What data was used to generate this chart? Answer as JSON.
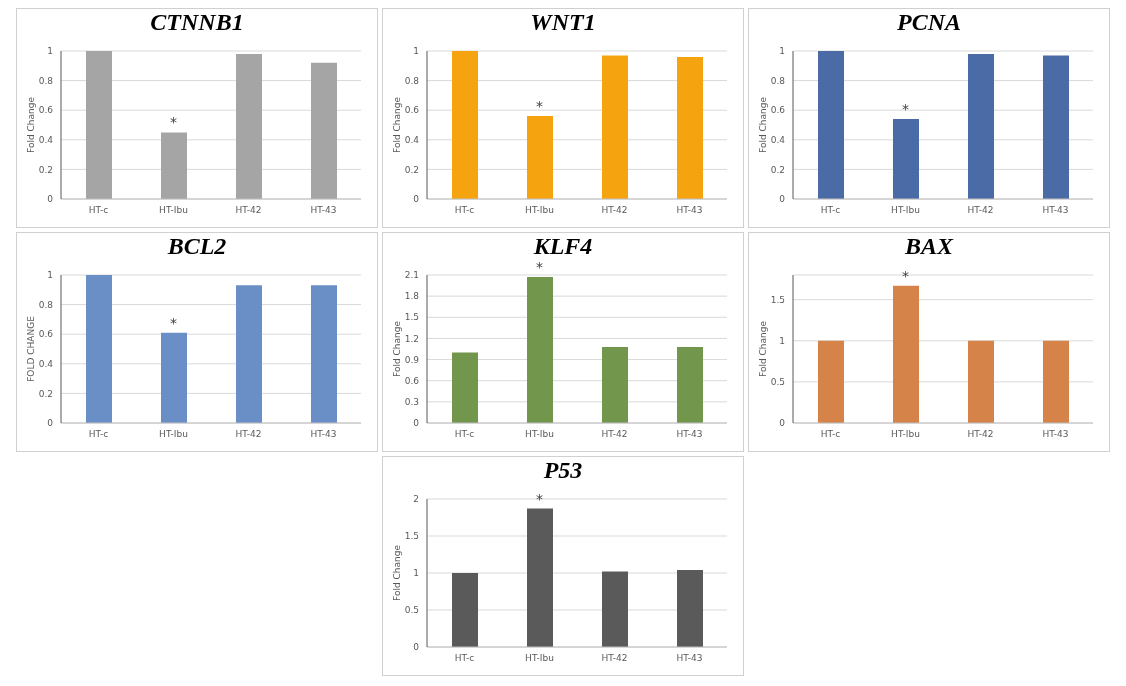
{
  "chart_data": [
    {
      "type": "bar",
      "title": "CTNNB1",
      "ylabel": "Fold Change",
      "categories": [
        "HT-c",
        "HT-Ibu",
        "HT-42",
        "HT-43"
      ],
      "values": [
        1,
        0.45,
        0.98,
        0.92
      ],
      "color": "#a5a5a5",
      "ylim": [
        0,
        1
      ],
      "yticks": [
        0,
        0.2,
        0.4,
        0.6,
        0.8,
        1
      ],
      "grid": "y",
      "annotations": [
        {
          "text": "*",
          "x": "HT-Ibu",
          "y": 0.45
        }
      ]
    },
    {
      "type": "bar",
      "title": "WNT1",
      "ylabel": "Fold Change",
      "categories": [
        "HT-c",
        "HT-Ibu",
        "HT-42",
        "HT-43"
      ],
      "values": [
        1,
        0.56,
        0.97,
        0.96
      ],
      "color": "#f5a30f",
      "ylim": [
        0,
        1
      ],
      "yticks": [
        0,
        0.2,
        0.4,
        0.6,
        0.8,
        1
      ],
      "grid": "y",
      "annotations": [
        {
          "text": "*",
          "x": "HT-Ibu",
          "y": 0.56
        }
      ]
    },
    {
      "type": "bar",
      "title": "PCNA",
      "ylabel": "Fold Change",
      "categories": [
        "HT-c",
        "HT-Ibu",
        "HT-42",
        "HT-43"
      ],
      "values": [
        1,
        0.54,
        0.98,
        0.97
      ],
      "color": "#4a6ba5",
      "ylim": [
        0,
        1
      ],
      "yticks": [
        0,
        0.2,
        0.4,
        0.6,
        0.8,
        1
      ],
      "grid": "y",
      "annotations": [
        {
          "text": "*",
          "x": "HT-Ibu",
          "y": 0.54
        }
      ]
    },
    {
      "type": "bar",
      "title": "BCL2",
      "ylabel": "FOLD CHANGE",
      "categories": [
        "HT-c",
        "HT-Ibu",
        "HT-42",
        "HT-43"
      ],
      "values": [
        1,
        0.61,
        0.93,
        0.93
      ],
      "color": "#6a8fc6",
      "ylim": [
        0,
        1
      ],
      "yticks": [
        0,
        0.2,
        0.4,
        0.6,
        0.8,
        1
      ],
      "grid": "y",
      "annotations": [
        {
          "text": "*",
          "x": "HT-Ibu",
          "y": 0.61
        }
      ]
    },
    {
      "type": "bar",
      "title": "KLF4",
      "ylabel": "Fold Change",
      "categories": [
        "HT-c",
        "HT-Ibu",
        "HT-42",
        "HT-43"
      ],
      "values": [
        1,
        2.07,
        1.08,
        1.08
      ],
      "color": "#72964c",
      "ylim": [
        0,
        2.1
      ],
      "yticks": [
        0,
        0.3,
        0.6,
        0.9,
        1.2,
        1.5,
        1.8,
        2.1
      ],
      "grid": "y",
      "annotations": [
        {
          "text": "*",
          "x": "HT-Ibu",
          "y": 2.07
        }
      ]
    },
    {
      "type": "bar",
      "title": "BAX",
      "ylabel": "Fold Change",
      "categories": [
        "HT-c",
        "HT-Ibu",
        "HT-42",
        "HT-43"
      ],
      "values": [
        1,
        1.67,
        1,
        1
      ],
      "color": "#d6834a",
      "ylim": [
        0,
        1.8
      ],
      "yticks": [
        0,
        0.5,
        1,
        1.5
      ],
      "grid": "y",
      "annotations": [
        {
          "text": "*",
          "x": "HT-Ibu",
          "y": 1.67
        }
      ]
    },
    {
      "type": "bar",
      "title": "P53",
      "ylabel": "Fold Change",
      "categories": [
        "HT-c",
        "HT-Ibu",
        "HT-42",
        "HT-43"
      ],
      "values": [
        1,
        1.87,
        1.02,
        1.04
      ],
      "color": "#5a5a5a",
      "ylim": [
        0,
        2
      ],
      "yticks": [
        0,
        0.5,
        1,
        1.5,
        2
      ],
      "grid": "y",
      "annotations": [
        {
          "text": "*",
          "x": "HT-Ibu",
          "y": 1.87
        }
      ]
    }
  ]
}
